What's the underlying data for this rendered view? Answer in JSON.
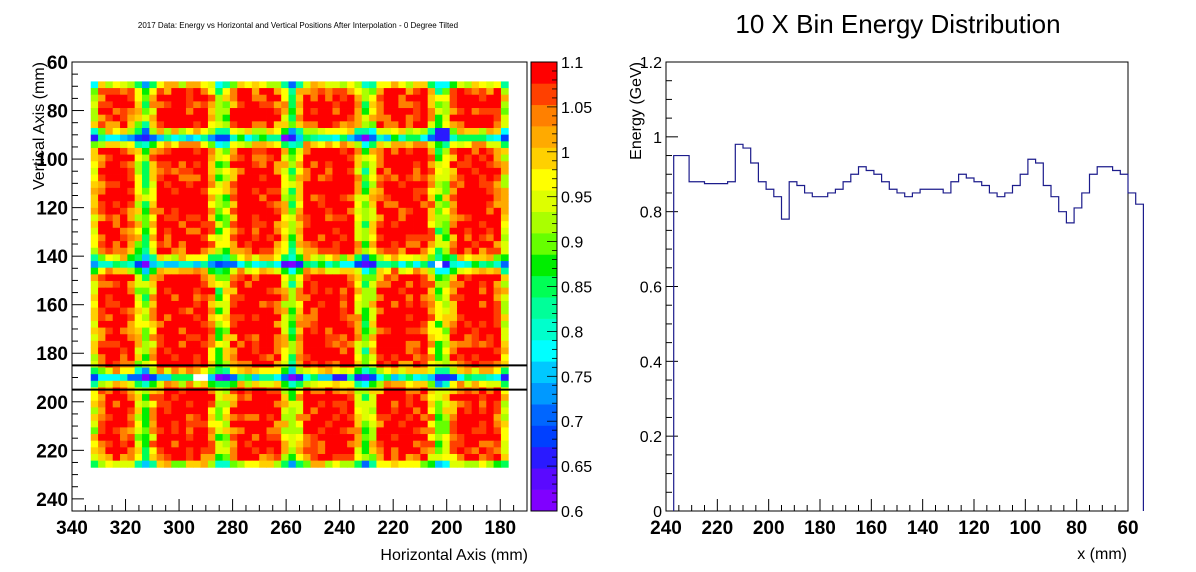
{
  "colors": {
    "palette": [
      "#8000ff",
      "#5a0aff",
      "#2a1aff",
      "#0040ff",
      "#0066ff",
      "#0099ff",
      "#00c8ff",
      "#00ffff",
      "#00ffcc",
      "#00ff99",
      "#00ff55",
      "#00ee00",
      "#66ff00",
      "#aaff00",
      "#ddff00",
      "#ffff00",
      "#ffd000",
      "#ffaa00",
      "#ff8000",
      "#ff4000",
      "#ff0000"
    ],
    "line": "#1c1c8c",
    "cut_lines": "#000000"
  },
  "chart_data": [
    {
      "type": "heatmap",
      "title": "2017 Data: Energy vs Horizontal and Vertical Positions After Interpolation - 0 Degree Tilted",
      "xlabel": "Horizontal Axis (mm)",
      "ylabel": "Vertical Axis (mm)",
      "xlim": [
        340,
        170
      ],
      "ylim": [
        245,
        60
      ],
      "x_ticks": [
        340,
        320,
        300,
        280,
        260,
        240,
        220,
        200,
        180
      ],
      "y_ticks": [
        60,
        80,
        100,
        120,
        140,
        160,
        180,
        200,
        220,
        240
      ],
      "x_tick_labels": [
        "340",
        "320",
        "300",
        "280",
        "260",
        "240",
        "220",
        "200",
        "180"
      ],
      "y_tick_labels": [
        "60",
        "80",
        "100",
        "120",
        "140",
        "160",
        "180",
        "200",
        "220",
        "240"
      ],
      "data_extent": {
        "x": [
          333,
          177
        ],
        "y": [
          68,
          227
        ]
      },
      "bins": {
        "nx": 57,
        "ny": 58
      },
      "cell_structure": {
        "x_gaps_mm": [
          313,
          284,
          258,
          230,
          202
        ],
        "y_gaps_mm": [
          91,
          143,
          190
        ],
        "blue_spots": [
          [
            202,
            143
          ],
          [
            202,
            90
          ],
          [
            292,
            190
          ],
          [
            240,
            190
          ],
          [
            202,
            190
          ],
          [
            178,
            190
          ]
        ]
      },
      "colorbar": {
        "range": [
          0.6,
          1.1
        ],
        "ticks": [
          0.6,
          0.65,
          0.7,
          0.75,
          0.8,
          0.85,
          0.9,
          0.95,
          1,
          1.05,
          1.1
        ],
        "tick_labels": [
          "0.6",
          "0.65",
          "0.7",
          "0.75",
          "0.8",
          "0.85",
          "0.9",
          "0.95",
          "1",
          "1.05",
          "1.1"
        ]
      },
      "selection_lines_y": [
        185,
        195
      ],
      "grid": false
    },
    {
      "type": "line",
      "title": "10 X Bin Energy Distribution",
      "xlabel": "x (mm)",
      "ylabel": "Energy (GeV)",
      "xlim": [
        240,
        60
      ],
      "ylim": [
        0,
        1.2
      ],
      "x_ticks": [
        240,
        220,
        200,
        180,
        160,
        140,
        120,
        100,
        80,
        60
      ],
      "y_ticks": [
        0,
        0.2,
        0.4,
        0.6,
        0.8,
        1,
        1.2
      ],
      "x_tick_labels": [
        "240",
        "220",
        "200",
        "180",
        "160",
        "140",
        "120",
        "100",
        "80",
        "60"
      ],
      "y_tick_labels": [
        "0",
        "0.2",
        "0.4",
        "0.6",
        "0.8",
        "1",
        "1.2"
      ],
      "bin_width": 3,
      "bin_edges_start": 237,
      "values": [
        0.95,
        0.95,
        0.88,
        0.88,
        0.875,
        0.875,
        0.875,
        0.88,
        0.98,
        0.97,
        0.93,
        0.88,
        0.86,
        0.84,
        0.78,
        0.88,
        0.87,
        0.85,
        0.84,
        0.84,
        0.85,
        0.86,
        0.88,
        0.9,
        0.92,
        0.91,
        0.9,
        0.88,
        0.86,
        0.85,
        0.84,
        0.85,
        0.86,
        0.86,
        0.86,
        0.85,
        0.88,
        0.9,
        0.89,
        0.88,
        0.87,
        0.85,
        0.84,
        0.85,
        0.87,
        0.9,
        0.94,
        0.93,
        0.87,
        0.84,
        0.8,
        0.77,
        0.81,
        0.85,
        0.9,
        0.92,
        0.92,
        0.91,
        0.9,
        0.85,
        0.82
      ],
      "grid": false
    }
  ]
}
